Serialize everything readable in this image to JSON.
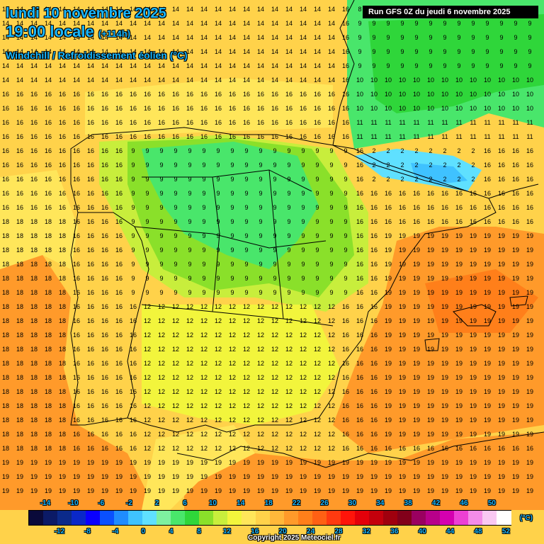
{
  "header": {
    "date": "lundi 10 novembre 2025",
    "time": "19:00 locale",
    "offset": "(+114h)",
    "parameter": "Windchill / Refroidissement éolien (°C)",
    "run": "Run GFS 0Z du jeudi 6 novembre 2025"
  },
  "legend": {
    "unit": "(°C)",
    "top_labels": [
      "-14",
      "-10",
      "-6",
      "-2",
      "2",
      "6",
      "10",
      "14",
      "18",
      "22",
      "26",
      "30",
      "34",
      "38",
      "42",
      "46",
      "50"
    ],
    "bottom_labels": [
      "-12",
      "-8",
      "-4",
      "0",
      "4",
      "8",
      "12",
      "16",
      "20",
      "24",
      "28",
      "32",
      "36",
      "40",
      "44",
      "48",
      "52"
    ],
    "colors": [
      "#0a0a3a",
      "#0b1a66",
      "#0b2a8a",
      "#0a28c8",
      "#0a00ff",
      "#0a50ff",
      "#1f8cff",
      "#3fc2ff",
      "#5fe0ff",
      "#7ef0a0",
      "#49e66b",
      "#2fd63a",
      "#8ae02a",
      "#c8ee3c",
      "#f2f53c",
      "#ffe65a",
      "#ffd24a",
      "#ffb83a",
      "#ff9a2a",
      "#ff7f1a",
      "#ff6014",
      "#ff3a10",
      "#ff140a",
      "#e4000a",
      "#c4000c",
      "#a0000e",
      "#82001a",
      "#9a0060",
      "#b8008a",
      "#d400b0",
      "#ec40d4",
      "#f48ce8",
      "#f9c8f2",
      "#ffffff"
    ]
  },
  "copyright": "Copyright 2025 Meteociel.fr"
}
